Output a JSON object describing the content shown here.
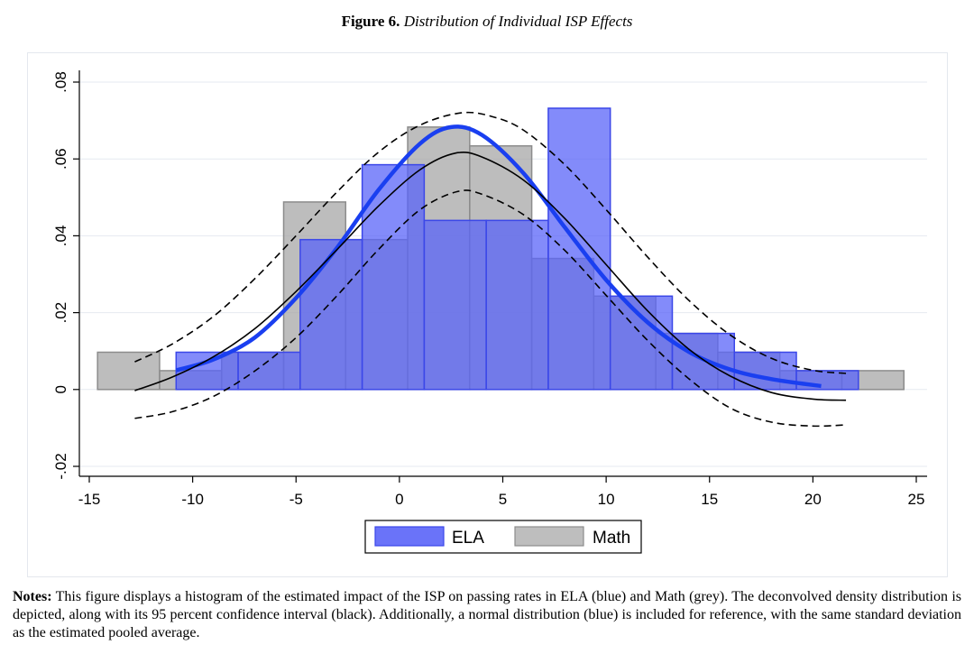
{
  "figure": {
    "number": "Figure 6.",
    "caption": "Distribution of Individual ISP Effects"
  },
  "chart_data": {
    "type": "bar",
    "subtype": "overlaid-histogram-with-density-curves",
    "xlim": [
      -15,
      25
    ],
    "ylim": [
      -0.02,
      0.08
    ],
    "x_ticks": [
      -15,
      -10,
      -5,
      0,
      5,
      10,
      15,
      20,
      25
    ],
    "x_tick_labels": [
      "-15",
      "-10",
      "-5",
      "0",
      "5",
      "10",
      "15",
      "20",
      "25"
    ],
    "y_ticks": [
      -0.02,
      0,
      0.02,
      0.04,
      0.06,
      0.08
    ],
    "y_tick_labels": [
      "-.02",
      "0",
      ".02",
      ".04",
      ".06",
      ".08"
    ],
    "grid": "horizontal",
    "legend_position": "bottom",
    "colors": {
      "ela_fill": "#5a64f8",
      "ela_edge": "#3b47e8",
      "math_fill": "#a3a3a3",
      "math_edge": "#8c8c8c",
      "normal_curve": "#1a3ff0",
      "density_curve": "#000000",
      "grid": "#e6eaf0"
    },
    "legend": [
      {
        "label": "ELA",
        "color": "#5a64f8"
      },
      {
        "label": "Math",
        "color": "#a3a3a3"
      }
    ],
    "series": [
      {
        "name": "ELA",
        "bins": [
          {
            "x0": -10.8,
            "x1": -7.8,
            "y": 0.0097
          },
          {
            "x0": -7.8,
            "x1": -4.8,
            "y": 0.0097
          },
          {
            "x0": -4.8,
            "x1": -1.8,
            "y": 0.039
          },
          {
            "x0": -1.8,
            "x1": 1.2,
            "y": 0.0585
          },
          {
            "x0": 1.2,
            "x1": 4.2,
            "y": 0.044
          },
          {
            "x0": 4.2,
            "x1": 7.2,
            "y": 0.044
          },
          {
            "x0": 7.2,
            "x1": 10.2,
            "y": 0.0732
          },
          {
            "x0": 10.2,
            "x1": 13.2,
            "y": 0.0243
          },
          {
            "x0": 13.2,
            "x1": 16.2,
            "y": 0.0146
          },
          {
            "x0": 16.2,
            "x1": 19.2,
            "y": 0.0097
          },
          {
            "x0": 19.2,
            "x1": 22.2,
            "y": 0.0049
          }
        ]
      },
      {
        "name": "Math",
        "bins": [
          {
            "x0": -14.6,
            "x1": -11.6,
            "y": 0.0097
          },
          {
            "x0": -11.6,
            "x1": -8.6,
            "y": 0.0049
          },
          {
            "x0": -8.6,
            "x1": -5.6,
            "y": 0.0097
          },
          {
            "x0": -5.6,
            "x1": -2.6,
            "y": 0.0488
          },
          {
            "x0": -2.6,
            "x1": 0.4,
            "y": 0.039
          },
          {
            "x0": 0.4,
            "x1": 3.4,
            "y": 0.0683
          },
          {
            "x0": 3.4,
            "x1": 6.4,
            "y": 0.0634
          },
          {
            "x0": 6.4,
            "x1": 9.4,
            "y": 0.0341
          },
          {
            "x0": 9.4,
            "x1": 12.4,
            "y": 0.0243
          },
          {
            "x0": 12.4,
            "x1": 15.4,
            "y": 0.0146
          },
          {
            "x0": 15.4,
            "x1": 18.4,
            "y": 0.0097
          },
          {
            "x0": 18.4,
            "x1": 21.4,
            "y": 0.0049
          },
          {
            "x0": 21.4,
            "x1": 24.4,
            "y": 0.0049
          }
        ]
      }
    ],
    "curves": [
      {
        "name": "normal",
        "style": "thick-blue",
        "x": [
          -10.8,
          -9,
          -7,
          -5,
          -3,
          -1,
          1,
          2.5,
          4,
          6,
          8,
          10,
          12,
          14,
          16,
          18,
          20.4
        ],
        "y": [
          0.005,
          0.0078,
          0.0135,
          0.0238,
          0.037,
          0.052,
          0.064,
          0.0683,
          0.0662,
          0.0563,
          0.0422,
          0.0285,
          0.0175,
          0.0098,
          0.0052,
          0.0027,
          0.0009
        ]
      },
      {
        "name": "deconvolved-density",
        "style": "solid-black",
        "x": [
          -12.8,
          -11,
          -9,
          -7,
          -5,
          -3,
          -1,
          1,
          2.7,
          4,
          6,
          8,
          10,
          12,
          14,
          16,
          18,
          20,
          21.6
        ],
        "y": [
          -0.0003,
          0.0032,
          0.0085,
          0.0158,
          0.0255,
          0.0365,
          0.0478,
          0.0572,
          0.0615,
          0.0605,
          0.0545,
          0.0445,
          0.0325,
          0.0205,
          0.0105,
          0.0035,
          -0.0008,
          -0.0025,
          -0.0028
        ]
      },
      {
        "name": "ci-upper",
        "style": "dashed-black",
        "x": [
          -12.8,
          -11,
          -9,
          -7,
          -5,
          -3,
          -1,
          1,
          3,
          4.5,
          6,
          8,
          10,
          12,
          14,
          16,
          18,
          20,
          21.6
        ],
        "y": [
          0.0072,
          0.0118,
          0.019,
          0.0288,
          0.04,
          0.0515,
          0.0618,
          0.0688,
          0.072,
          0.071,
          0.0675,
          0.0585,
          0.0468,
          0.0345,
          0.0232,
          0.0142,
          0.0081,
          0.005,
          0.0042
        ]
      },
      {
        "name": "ci-lower",
        "style": "dashed-black",
        "x": [
          -12.8,
          -11,
          -9,
          -7,
          -5,
          -3,
          -1,
          1,
          2.8,
          4,
          6,
          8,
          10,
          12,
          14,
          16,
          18,
          20,
          21.6
        ],
        "y": [
          -0.0075,
          -0.0058,
          -0.0018,
          0.0048,
          0.0135,
          0.0245,
          0.0365,
          0.0468,
          0.0515,
          0.0508,
          0.0455,
          0.0362,
          0.0245,
          0.0128,
          0.0028,
          -0.0048,
          -0.0085,
          -0.0095,
          -0.0092
        ]
      }
    ]
  },
  "notes": {
    "label": "Notes:",
    "text": "This figure displays a histogram of the estimated impact of the ISP on passing rates in ELA (blue) and Math (grey). The deconvolved density distribution is depicted, along with its 95 percent confidence interval (black). Additionally, a normal distribution (blue) is included for reference, with the same standard deviation as the estimated pooled average."
  }
}
